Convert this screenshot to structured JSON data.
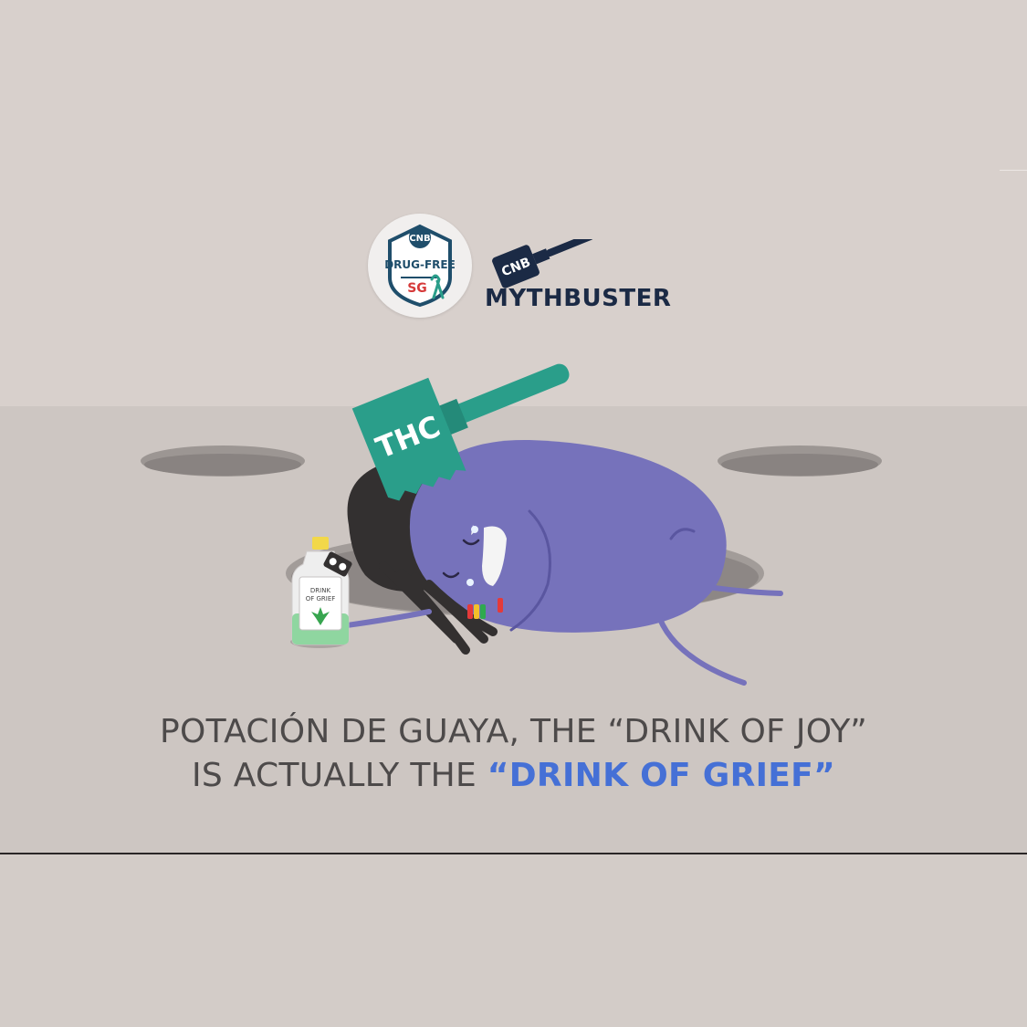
{
  "logos": {
    "badge_cnb": "CNB",
    "badge_drugfree": "DRUG-FREE",
    "badge_sg": "SG",
    "hammer_cnb": "CNB",
    "mythbuster_myth": "MYTH",
    "mythbuster_buster": "BUSTER"
  },
  "illustration": {
    "hammer_label": "THC",
    "bottle_label_line1": "DRINK",
    "bottle_label_line2": "OF GRIEF"
  },
  "caption": {
    "line1": "POTACIÓN DE GUAYA, THE “DRINK OF JOY”",
    "line2_prefix": "IS ACTUALLY THE ",
    "line2_highlight": "“DRINK OF GRIEF”"
  },
  "colors": {
    "top_background": "#d8d0cc",
    "floor": "#cdc6c2",
    "character_body": "#7672bb",
    "hammer_teal": "#2a9e8a",
    "highlight_blue": "#4570d6",
    "logo_navy": "#1b2a45"
  }
}
